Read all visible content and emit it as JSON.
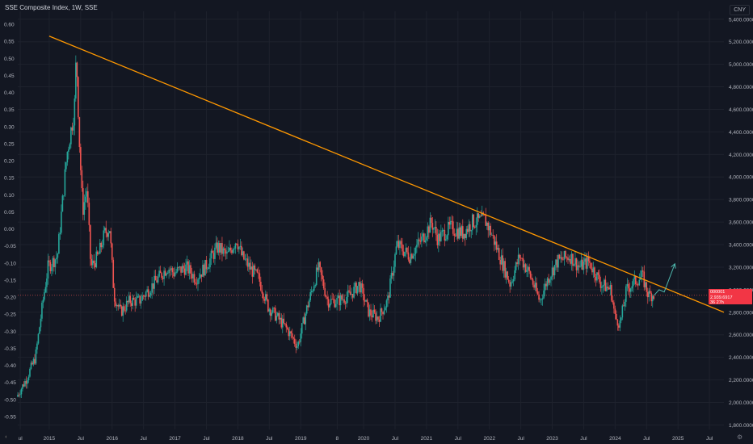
{
  "title": "SSE Composite Index, 1W, SSE",
  "currency": "CNY",
  "price_tag": {
    "symbol": "000001",
    "price": "2,939.6917",
    "time": "36 27h"
  },
  "colors": {
    "bg": "#131722",
    "grid": "#1e222d",
    "up": "#26a69a",
    "down": "#ef5350",
    "trend": "#ff9800",
    "arrow": "#4db6ac"
  },
  "chart_data": {
    "type": "candlestick",
    "title": "SSE Composite Index, 1W, SSE",
    "x_ticks": [
      "ul",
      "2015",
      "Jul",
      "2016",
      "Jul",
      "2017",
      "Jul",
      "2018",
      "Jul",
      "2019",
      "8",
      "2020",
      "Jul",
      "2021",
      "Jul",
      "2022",
      "Jul",
      "2023",
      "Jul",
      "2024",
      "Jul",
      "2025",
      "Jul"
    ],
    "x_tick_dates": [
      2014.54,
      2015.0,
      2015.5,
      2016.0,
      2016.5,
      2017.0,
      2017.5,
      2018.0,
      2018.5,
      2019.0,
      2019.58,
      2020.0,
      2020.5,
      2021.0,
      2021.5,
      2022.0,
      2022.5,
      2023.0,
      2023.5,
      2024.0,
      2024.5,
      2025.0,
      2025.5
    ],
    "x_range": [
      2014.5,
      2025.73
    ],
    "left_axis": {
      "ticks": [
        "0.60",
        "0.55",
        "0.50",
        "0.45",
        "0.40",
        "0.35",
        "0.30",
        "0.25",
        "0.20",
        "0.15",
        "0.10",
        "0.05",
        "0.00",
        "-0.05",
        "-0.10",
        "-0.15",
        "-0.20",
        "-0.25",
        "-0.30",
        "-0.35",
        "-0.40",
        "-0.45",
        "-0.50",
        "-0.55"
      ]
    },
    "right_axis": {
      "unit": "CNY",
      "ticks": [
        "5,400.0000",
        "5,200.0000",
        "5,000.0000",
        "4,800.0000",
        "4,600.0000",
        "4,400.0000",
        "4,200.0000",
        "4,000.0000",
        "3,800.0000",
        "3,600.0000",
        "3,400.0000",
        "3,200.0000",
        "3,000.0000",
        "2,800.0000",
        "2,600.0000",
        "2,400.0000",
        "2,200.0000",
        "2,000.0000",
        "1,800.0000"
      ],
      "range": [
        1760,
        5470
      ]
    },
    "price_path": [
      [
        2014.5,
        2050
      ],
      [
        2014.65,
        2200
      ],
      [
        2014.8,
        2400
      ],
      [
        2014.92,
        2900
      ],
      [
        2015.0,
        3200
      ],
      [
        2015.15,
        3300
      ],
      [
        2015.3,
        4200
      ],
      [
        2015.42,
        4600
      ],
      [
        2015.45,
        5100
      ],
      [
        2015.5,
        4300
      ],
      [
        2015.55,
        3700
      ],
      [
        2015.62,
        3900
      ],
      [
        2015.68,
        3200
      ],
      [
        2015.8,
        3300
      ],
      [
        2015.9,
        3500
      ],
      [
        2015.98,
        3550
      ],
      [
        2016.05,
        2950
      ],
      [
        2016.15,
        2800
      ],
      [
        2016.3,
        2900
      ],
      [
        2016.45,
        2900
      ],
      [
        2016.6,
        3000
      ],
      [
        2016.75,
        3100
      ],
      [
        2016.9,
        3200
      ],
      [
        2017.0,
        3150
      ],
      [
        2017.2,
        3200
      ],
      [
        2017.35,
        3100
      ],
      [
        2017.5,
        3200
      ],
      [
        2017.7,
        3380
      ],
      [
        2017.85,
        3300
      ],
      [
        2018.0,
        3450
      ],
      [
        2018.08,
        3300
      ],
      [
        2018.2,
        3200
      ],
      [
        2018.35,
        3100
      ],
      [
        2018.5,
        2850
      ],
      [
        2018.65,
        2750
      ],
      [
        2018.8,
        2650
      ],
      [
        2018.97,
        2500
      ],
      [
        2019.1,
        2800
      ],
      [
        2019.3,
        3200
      ],
      [
        2019.45,
        2900
      ],
      [
        2019.6,
        2900
      ],
      [
        2019.8,
        2950
      ],
      [
        2019.95,
        3050
      ],
      [
        2020.1,
        2800
      ],
      [
        2020.25,
        2750
      ],
      [
        2020.4,
        2900
      ],
      [
        2020.55,
        3400
      ],
      [
        2020.75,
        3300
      ],
      [
        2020.95,
        3450
      ],
      [
        2021.1,
        3600
      ],
      [
        2021.2,
        3450
      ],
      [
        2021.4,
        3550
      ],
      [
        2021.6,
        3500
      ],
      [
        2021.75,
        3600
      ],
      [
        2021.95,
        3620
      ],
      [
        2022.05,
        3500
      ],
      [
        2022.25,
        3200
      ],
      [
        2022.35,
        3050
      ],
      [
        2022.5,
        3300
      ],
      [
        2022.65,
        3150
      ],
      [
        2022.82,
        2900
      ],
      [
        2022.95,
        3100
      ],
      [
        2023.1,
        3250
      ],
      [
        2023.3,
        3300
      ],
      [
        2023.45,
        3200
      ],
      [
        2023.6,
        3250
      ],
      [
        2023.8,
        3050
      ],
      [
        2023.95,
        3000
      ],
      [
        2024.02,
        2750
      ],
      [
        2024.1,
        2700
      ],
      [
        2024.2,
        3000
      ],
      [
        2024.35,
        3080
      ],
      [
        2024.45,
        3120
      ],
      [
        2024.55,
        2950
      ],
      [
        2024.62,
        2960
      ]
    ],
    "trendline": [
      [
        2015.0,
        5250
      ],
      [
        2025.73,
        2800
      ]
    ],
    "arrow": [
      [
        2024.62,
        2950
      ],
      [
        2024.7,
        3000
      ],
      [
        2024.78,
        2980
      ],
      [
        2024.95,
        3230
      ]
    ]
  }
}
